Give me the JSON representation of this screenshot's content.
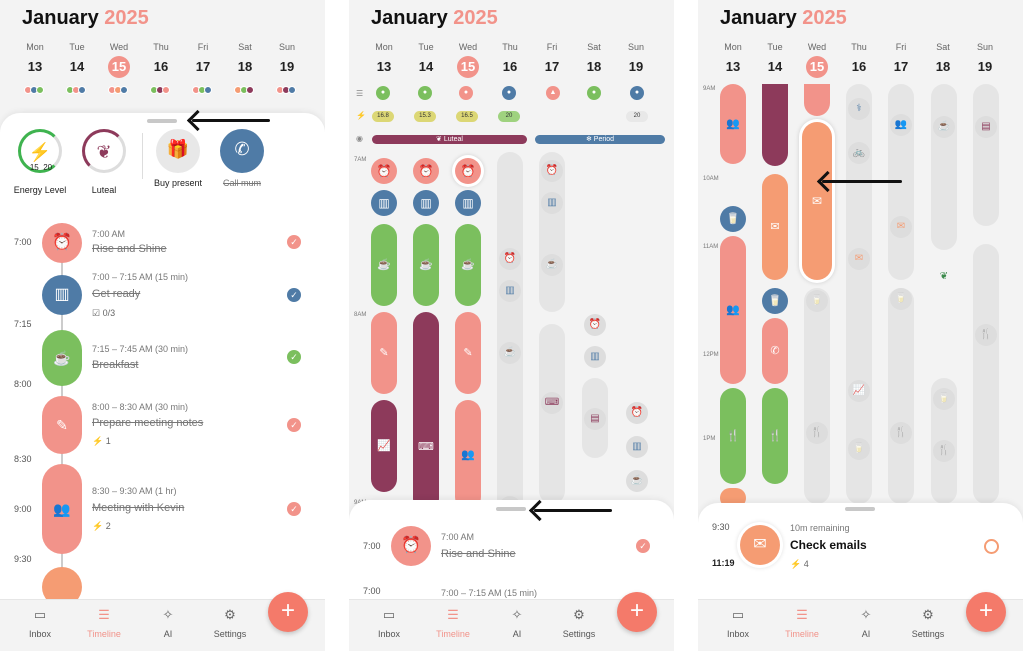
{
  "header": {
    "month": "January",
    "year": "2025"
  },
  "week": [
    {
      "name": "Mon",
      "num": "13"
    },
    {
      "name": "Tue",
      "num": "14"
    },
    {
      "name": "Wed",
      "num": "15"
    },
    {
      "name": "Thu",
      "num": "16"
    },
    {
      "name": "Fri",
      "num": "17"
    },
    {
      "name": "Sat",
      "num": "18"
    },
    {
      "name": "Sun",
      "num": "19"
    }
  ],
  "today_index": 2,
  "colors": {
    "coral": "#f2938a",
    "orange": "#f59c73",
    "blue": "#4f7ba6",
    "green": "#7bbf5e",
    "plum": "#8d3a5b",
    "grey": "#e5e5e5",
    "accent": "#f47a6a"
  },
  "screen1": {
    "widgets": [
      {
        "label": "Energy Level",
        "icon": "bolt-icon",
        "values": [
          "15",
          "20"
        ]
      },
      {
        "label": "Luteal",
        "icon": "leaf-icon"
      },
      {
        "label": "Buy present",
        "icon": "gift-icon"
      },
      {
        "label": "Call mum",
        "icon": "phone-icon"
      }
    ],
    "time_labels": [
      "7:00",
      "7:15",
      "8:00",
      "8:30",
      "9:00",
      "9:30"
    ],
    "events": [
      {
        "time": "7:00 AM",
        "name": "Rise and Shine",
        "icon": "alarm-icon"
      },
      {
        "time": "7:00 – 7:15 AM (15 min)",
        "name": "Get ready",
        "sub": "0/3",
        "icon": "comb-icon"
      },
      {
        "time": "7:15 – 7:45 AM (30 min)",
        "name": "Breakfast",
        "icon": "coffee-icon"
      },
      {
        "time": "8:00 – 8:30 AM (30 min)",
        "name": "Prepare meeting notes",
        "sub": "1",
        "icon": "pencil-icon"
      },
      {
        "time": "8:30 – 9:30 AM (1 hr)",
        "name": "Meeting with Kevin",
        "sub": "2",
        "icon": "people-icon"
      }
    ]
  },
  "screen2": {
    "phase_labels": [
      "Luteal",
      "Period"
    ],
    "hour_labels": [
      "7AM",
      "8AM",
      "9AM"
    ],
    "energy": [
      "16.8",
      "15.3",
      "16.5",
      "20",
      "20"
    ],
    "sheet_event": {
      "time": "7:00 AM",
      "name": "Rise and Shine",
      "label": "7:00"
    },
    "sheet_next": {
      "time": "7:00 – 7:15 AM (15 min)",
      "label": "7:00"
    }
  },
  "screen3": {
    "hour_labels": [
      "9AM",
      "10AM",
      "11AM",
      "12PM",
      "1PM"
    ],
    "current": {
      "start": "9:30",
      "end": "11:19",
      "remaining": "10m remaining",
      "name": "Check emails",
      "energy": "4"
    }
  },
  "nav": [
    "Inbox",
    "Timeline",
    "AI",
    "Settings"
  ]
}
